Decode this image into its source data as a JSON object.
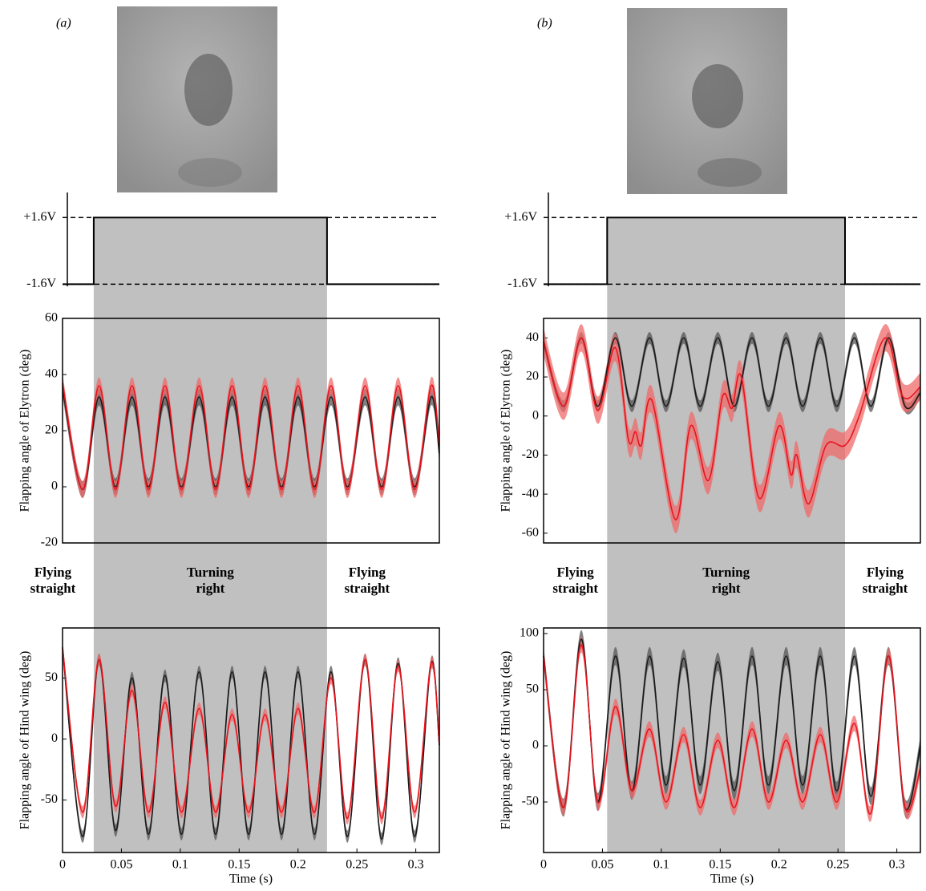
{
  "panels": [
    {
      "label": "(a)"
    },
    {
      "label": "(b)"
    }
  ],
  "chart_data": [
    {
      "type": "line",
      "x": [
        0,
        0.0265,
        0.0265,
        0.2246,
        0.2246,
        0.32
      ],
      "values": [
        -1.6,
        -1.6,
        1.6,
        1.6,
        -1.6,
        -1.6
      ],
      "color": "#000000",
      "xlim": [
        0,
        0.32
      ],
      "ylim": [
        -1.7,
        2.8
      ],
      "yticks": [
        {
          "value": -1.6,
          "label": "-1.6V"
        },
        {
          "value": 1.6,
          "label": "+1.6V"
        }
      ],
      "grid": "dashed",
      "shade": "#c0c0c0"
    },
    {
      "type": "line",
      "ylabel": "Flapping angle of Elytron (deg)",
      "smooth": true,
      "box": true,
      "x": [
        0,
        0.017,
        0.031,
        0.045,
        0.059,
        0.073,
        0.087,
        0.101,
        0.116,
        0.13,
        0.144,
        0.158,
        0.172,
        0.186,
        0.2,
        0.214,
        0.228,
        0.242,
        0.257,
        0.271,
        0.285,
        0.299,
        0.313,
        0.32
      ],
      "series": [
        {
          "color": "#1a1a1a",
          "band_color": "#555555",
          "band": 3,
          "values": [
            35,
            -1,
            32,
            0,
            32,
            0,
            32,
            0,
            32,
            0,
            32,
            0,
            32,
            0,
            32,
            0,
            32,
            0,
            32,
            0,
            32,
            0,
            32,
            12
          ]
        },
        {
          "color": "#e8141e",
          "band_color": "#f06a6a",
          "band": 3,
          "values": [
            37,
            -1,
            36,
            -1,
            36,
            -1,
            36,
            -1,
            36,
            -1,
            36,
            -1,
            36,
            -1,
            36,
            -1,
            36,
            -1,
            36,
            -1,
            36,
            -1,
            36,
            15
          ]
        }
      ],
      "xlim": [
        0,
        0.32
      ],
      "ylim": [
        -20,
        60
      ],
      "yticks": [
        -20,
        0,
        20,
        40,
        60
      ],
      "annotations": [
        "Flying straight",
        "Turning right",
        "Flying straight"
      ]
    },
    {
      "type": "line",
      "ylabel": "Flapping angle of Hind wing (deg)",
      "xlabel": "Time (s)",
      "smooth": true,
      "box": true,
      "x": [
        0,
        0.017,
        0.031,
        0.045,
        0.059,
        0.073,
        0.087,
        0.101,
        0.116,
        0.13,
        0.144,
        0.158,
        0.172,
        0.186,
        0.2,
        0.214,
        0.228,
        0.242,
        0.257,
        0.271,
        0.285,
        0.299,
        0.313,
        0.32
      ],
      "series": [
        {
          "color": "#1a1a1a",
          "band_color": "#555555",
          "band": 5,
          "values": [
            75,
            -80,
            65,
            -75,
            50,
            -78,
            52,
            -78,
            55,
            -78,
            55,
            -78,
            55,
            -78,
            55,
            -78,
            55,
            -80,
            65,
            -82,
            62,
            -80,
            62,
            -5
          ]
        },
        {
          "color": "#e8141e",
          "band_color": "#f06a6a",
          "band": 5,
          "values": [
            75,
            -60,
            65,
            -55,
            40,
            -60,
            30,
            -60,
            25,
            -60,
            20,
            -60,
            20,
            -60,
            25,
            -60,
            50,
            -65,
            65,
            -65,
            60,
            -60,
            62,
            -5
          ]
        }
      ],
      "xlim": [
        0,
        0.32
      ],
      "ylim": [
        -93,
        91
      ],
      "yticks": [
        -50,
        0,
        50
      ],
      "xticks": [
        0,
        0.05,
        0.1,
        0.15,
        0.2,
        0.25,
        0.3
      ]
    },
    {
      "type": "line",
      "x": [
        0,
        0.054,
        0.054,
        0.256,
        0.256,
        0.32
      ],
      "values": [
        -1.6,
        -1.6,
        1.6,
        1.6,
        -1.6,
        -1.6
      ],
      "color": "#000000",
      "xlim": [
        0,
        0.32
      ],
      "ylim": [
        -1.7,
        2.8
      ],
      "yticks": [
        {
          "value": -1.6,
          "label": "-1.6V"
        },
        {
          "value": 1.6,
          "label": "+1.6V"
        }
      ],
      "grid": "dashed",
      "shade": "#c0c0c0"
    },
    {
      "type": "line",
      "ylabel": "Flapping angle of Elytron (deg)",
      "smooth": true,
      "box": true,
      "x": [
        0,
        0.017,
        0.032,
        0.046,
        0.061,
        0.075,
        0.09,
        0.104,
        0.119,
        0.133,
        0.148,
        0.162,
        0.177,
        0.191,
        0.206,
        0.22,
        0.235,
        0.249,
        0.264,
        0.278,
        0.293,
        0.307,
        0.32
      ],
      "series": [
        {
          "color": "#1a1a1a",
          "band_color": "#555555",
          "band": 3,
          "values": [
            38,
            5,
            40,
            5,
            40,
            5,
            40,
            5,
            40,
            5,
            40,
            5,
            40,
            5,
            40,
            5,
            40,
            5,
            40,
            5,
            40,
            5,
            12
          ]
        },
        {
          "color": "#e8141e",
          "band_color": "#f06a6a",
          "band": 7,
          "x": [
            0,
            0.017,
            0.032,
            0.046,
            0.061,
            0.072,
            0.078,
            0.083,
            0.092,
            0.112,
            0.125,
            0.14,
            0.152,
            0.16,
            0.168,
            0.183,
            0.2,
            0.21,
            0.215,
            0.225,
            0.24,
            0.256,
            0.268,
            0.29,
            0.305,
            0.32
          ],
          "values": [
            38,
            5,
            40,
            3,
            35,
            -12,
            -8,
            -15,
            8,
            -53,
            -5,
            -33,
            10,
            4,
            20,
            -42,
            -5,
            -30,
            -20,
            -45,
            -15,
            -15,
            0,
            40,
            10,
            15
          ]
        }
      ],
      "xlim": [
        0,
        0.32
      ],
      "ylim": [
        -65,
        50
      ],
      "yticks": [
        -60,
        -40,
        -20,
        0,
        20,
        40
      ],
      "annotations": [
        "Flying straight",
        "Turning right",
        "Flying straight"
      ]
    },
    {
      "type": "line",
      "ylabel": "Flapping angle of Hind wing (deg)",
      "xlabel": "Time (s)",
      "smooth": true,
      "box": true,
      "x": [
        0,
        0.017,
        0.032,
        0.046,
        0.061,
        0.075,
        0.09,
        0.104,
        0.119,
        0.133,
        0.148,
        0.162,
        0.177,
        0.191,
        0.206,
        0.22,
        0.235,
        0.249,
        0.264,
        0.278,
        0.293,
        0.307,
        0.32
      ],
      "series": [
        {
          "color": "#1a1a1a",
          "band_color": "#555555",
          "band": 8,
          "values": [
            80,
            -55,
            95,
            -50,
            80,
            -40,
            80,
            -35,
            78,
            -35,
            75,
            -40,
            80,
            -35,
            80,
            -35,
            80,
            -40,
            80,
            -45,
            80,
            -55,
            0
          ]
        },
        {
          "color": "#e8141e",
          "band_color": "#f06a6a",
          "band": 7,
          "values": [
            80,
            -55,
            90,
            -50,
            35,
            -40,
            15,
            -50,
            10,
            -55,
            5,
            -55,
            15,
            -50,
            5,
            -50,
            10,
            -50,
            20,
            -60,
            80,
            -55,
            -20
          ]
        }
      ],
      "xlim": [
        0,
        0.32
      ],
      "ylim": [
        -95,
        105
      ],
      "yticks": [
        -50,
        0,
        50,
        100
      ],
      "xticks": [
        0,
        0.05,
        0.1,
        0.15,
        0.2,
        0.25,
        0.3
      ]
    }
  ]
}
